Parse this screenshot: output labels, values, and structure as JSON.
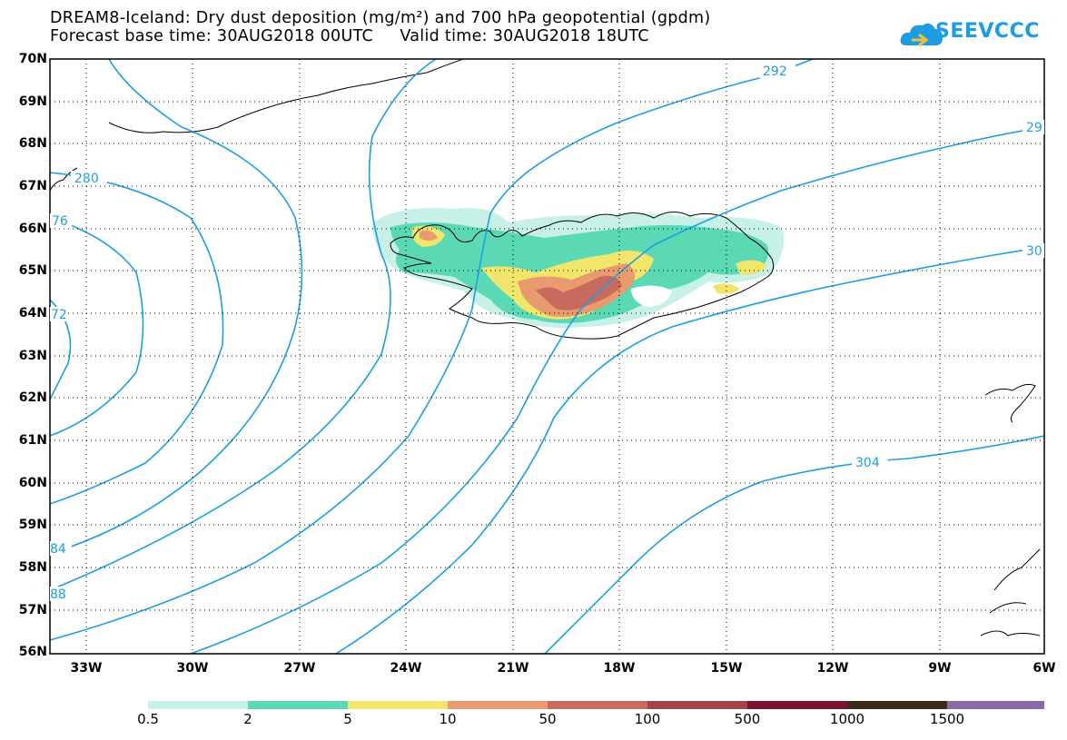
{
  "header": {
    "title_line1": "DREAM8-Iceland: Dry dust deposition (mg/m²) and 700 hPa geopotential (gpdm)",
    "title_line2": "Forecast base time: 30AUG2018 00UTC     Valid time: 30AUG2018 18UTC",
    "logo_text": "SEEVCCC"
  },
  "axes": {
    "lat_labels": [
      "70N",
      "69N",
      "68N",
      "67N",
      "66N",
      "65N",
      "64N",
      "63N",
      "62N",
      "61N",
      "60N",
      "59N",
      "58N",
      "57N",
      "56N"
    ],
    "lon_labels": [
      "33W",
      "30W",
      "27W",
      "24W",
      "21W",
      "18W",
      "15W",
      "12W",
      "9W",
      "6W"
    ]
  },
  "contour_labels": [
    "292",
    "29",
    "280",
    "76",
    "72",
    "30",
    "304",
    "84",
    "88"
  ],
  "legend": {
    "colors": [
      "#c6f0e8",
      "#5ad9b4",
      "#f2e56b",
      "#e99a6e",
      "#c86a5e",
      "#a4434b",
      "#7a1230",
      "#3e2a1a",
      "#8a6aa6",
      "#a8a8a8"
    ],
    "labels": [
      "0.5",
      "2",
      "5",
      "10",
      "50",
      "100",
      "500",
      "1000",
      "1500"
    ]
  },
  "colors": {
    "contour": "#1a9fe3",
    "frame": "#000000",
    "grid": "#000000"
  }
}
